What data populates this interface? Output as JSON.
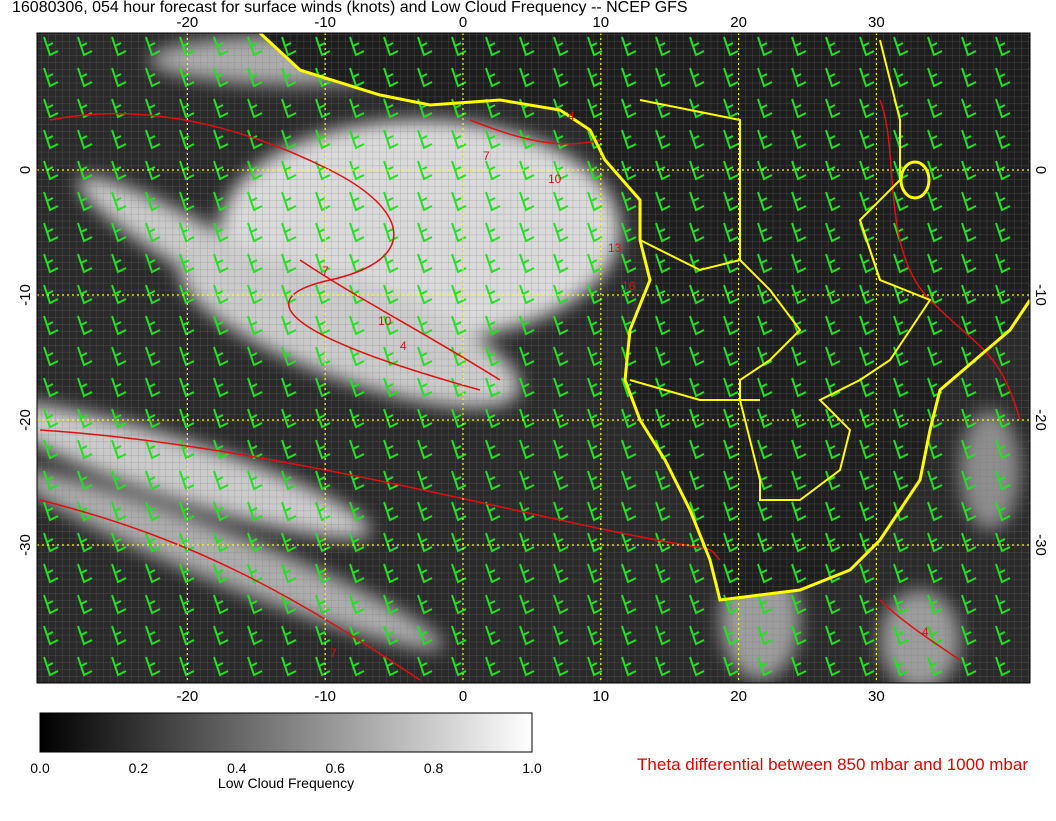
{
  "title": "16080306, 054 hour forecast for surface winds (knots) and Low Cloud Frequency -- NCEP GFS",
  "map": {
    "lon_ticks": [
      -20,
      -10,
      0,
      10,
      20,
      30
    ],
    "lat_ticks": [
      0,
      -10,
      -20,
      -30
    ],
    "contour_labels": [
      "4",
      "7",
      "10",
      "13",
      "16",
      "7",
      "10",
      "4",
      "7",
      "4"
    ]
  },
  "colorbar": {
    "ticks": [
      {
        "value": 0,
        "label": "0.0"
      },
      {
        "value": 0.2,
        "label": "0.2"
      },
      {
        "value": 0.4,
        "label": "0.4"
      },
      {
        "value": 0.6,
        "label": "0.6"
      },
      {
        "value": 0.8,
        "label": "0.8"
      },
      {
        "value": 1,
        "label": "1.0"
      }
    ],
    "label": "Low Cloud Frequency"
  },
  "caption": "Theta differential between 850 mbar and 1000 mbar"
}
